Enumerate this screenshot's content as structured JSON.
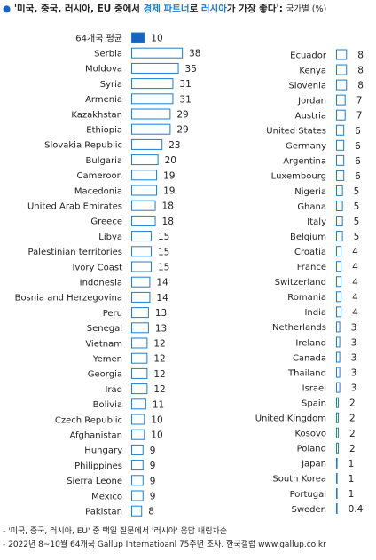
{
  "title": {
    "bullet": "●",
    "part1": "'미국, 중국, 러시아, EU 중에서 ",
    "part2": "경제 파트너",
    "part3": "로 ",
    "part4": "러시아",
    "part5": "가 가장 좋다': ",
    "note": "국가별 (%)"
  },
  "colors": {
    "accent": "#1a7ed1",
    "bar_fill": "#1565c0",
    "bar_outline": "#1a7ed1"
  },
  "chart_data": {
    "type": "bar",
    "orientation": "horizontal",
    "panels": [
      {
        "categories": [
          "64개국 평균",
          "Serbia",
          "Moldova",
          "Syria",
          "Armenia",
          "Kazakhstan",
          "Ethiopia",
          "Slovakia Republic",
          "Bulgaria",
          "Cameroon",
          "Macedonia",
          "United Arab Emirates",
          "Greece",
          "Libya",
          "Palestinian territories",
          "Ivory Coast",
          "Indonesia",
          "Bosnia and Herzegovina",
          "Peru",
          "Senegal",
          "Vietnam",
          "Yemen",
          "Georgia",
          "Iraq",
          "Bolivia",
          "Czech Republic",
          "Afghanistan",
          "Hungary",
          "Philippines",
          "Sierra Leone",
          "Mexico",
          "Pakistan"
        ],
        "values": [
          10,
          38,
          35,
          31,
          31,
          29,
          29,
          23,
          20,
          19,
          19,
          18,
          18,
          15,
          15,
          15,
          14,
          14,
          13,
          13,
          12,
          12,
          12,
          12,
          11,
          10,
          10,
          9,
          9,
          9,
          9,
          8
        ],
        "value_labels": [
          "10",
          "38",
          "35",
          "31",
          "31",
          "29",
          "29",
          "23",
          "20",
          "19",
          "19",
          "18",
          "18",
          "15",
          "15",
          "15",
          "14",
          "14",
          "13",
          "13",
          "12",
          "12",
          "12",
          "12",
          "11",
          "10",
          "10",
          "9",
          "9",
          "9",
          "9",
          "8"
        ],
        "highlight_index": 0
      },
      {
        "categories": [
          "Ecuador",
          "Kenya",
          "Slovenia",
          "Jordan",
          "Austria",
          "United States",
          "Germany",
          "Argentina",
          "Luxembourg",
          "Nigeria",
          "Ghana",
          "Italy",
          "Belgium",
          "Croatia",
          "France",
          "Switzerland",
          "Romania",
          "India",
          "Netherlands",
          "Ireland",
          "Canada",
          "Thailand",
          "Israel",
          "Spain",
          "United Kingdom",
          "Kosovo",
          "Poland",
          "Japan",
          "South Korea",
          "Portugal",
          "Sweden"
        ],
        "values": [
          8,
          8,
          8,
          7,
          7,
          6,
          6,
          6,
          6,
          5,
          5,
          5,
          5,
          4,
          4,
          4,
          4,
          4,
          3,
          3,
          3,
          3,
          3,
          2,
          2,
          2,
          2,
          1,
          1,
          1,
          0.4
        ],
        "value_labels": [
          "8",
          "8",
          "8",
          "7",
          "7",
          "6",
          "6",
          "6",
          "6",
          "5",
          "5",
          "5",
          "5",
          "4",
          "4",
          "4",
          "4",
          "4",
          "3",
          "3",
          "3",
          "3",
          "3",
          "2",
          "2",
          "2",
          "2",
          "1",
          "1",
          "1",
          "0.4"
        ]
      }
    ]
  },
  "notes": [
    "- '미국, 중국, 러시아, EU' 중 택일 질문에서 '러시아' 응답 내림차순",
    "- 2022년 8~10월 64개국 Gallup Internatioanl 75주년 조사. 한국갤럽 www.gallup.co.kr"
  ]
}
